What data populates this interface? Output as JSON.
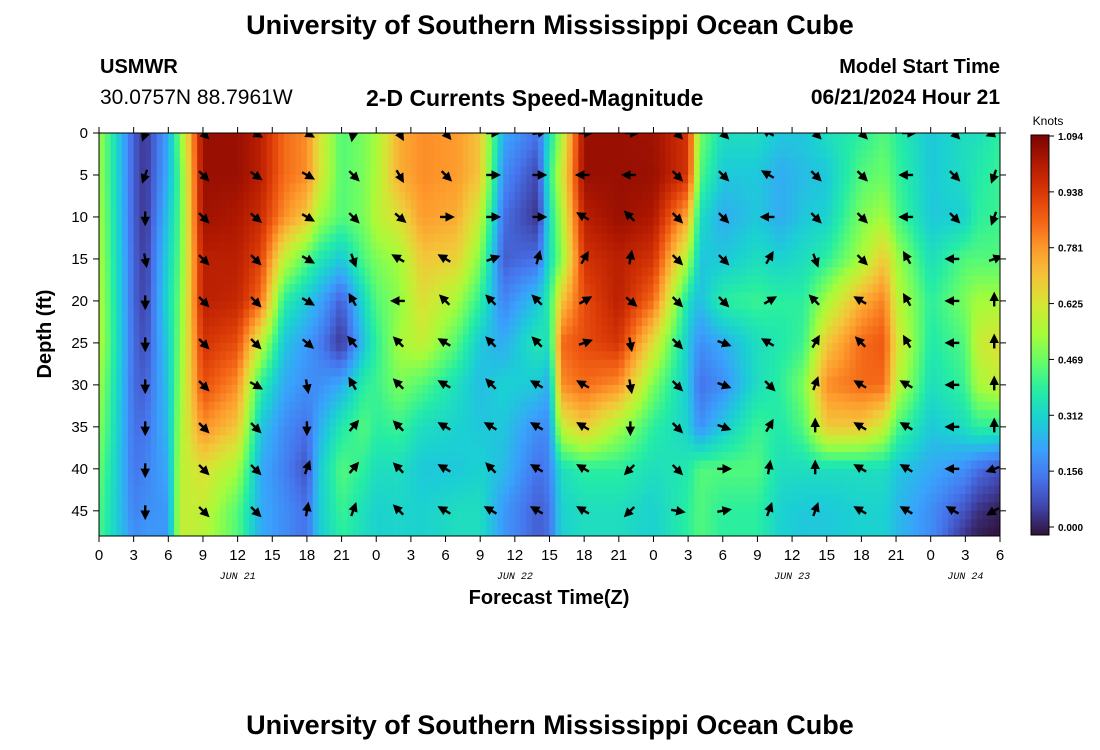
{
  "header": {
    "title": "University of Southern Mississippi Ocean Cube",
    "station_name": "USMWR",
    "station_coords": "30.0757N  88.7961W",
    "variable_title": "2-D Currents Speed-Magnitude",
    "model_start_label": "Model Start Time",
    "model_start_value": "06/21/2024 Hour 21"
  },
  "footer": {
    "title": "University of Southern Mississippi Ocean Cube"
  },
  "chart_data": {
    "type": "heatmap",
    "title": "2-D Currents Speed-Magnitude",
    "xlabel": "Forecast Time(Z)",
    "ylabel": "Depth (ft)",
    "x_tick_labels": [
      "0",
      "3",
      "6",
      "9",
      "12",
      "15",
      "18",
      "21",
      "0",
      "3",
      "6",
      "9",
      "12",
      "15",
      "18",
      "21",
      "0",
      "3",
      "6",
      "9",
      "12",
      "15",
      "18",
      "21",
      "0",
      "3",
      "6"
    ],
    "date_labels": [
      {
        "label": "JUN 21",
        "tick_index": 4
      },
      {
        "label": "JUN 22",
        "tick_index": 12
      },
      {
        "label": "JUN 23",
        "tick_index": 20
      },
      {
        "label": "JUN 24",
        "tick_index": 25
      }
    ],
    "hours_range": [
      0,
      78
    ],
    "depth_range": [
      0,
      48
    ],
    "y_ticks": [
      0,
      5,
      10,
      15,
      20,
      25,
      30,
      35,
      40,
      45
    ],
    "colorbar": {
      "unit_label": "Knots",
      "min": 0.0,
      "max": 1.094,
      "tick_labels": [
        "1.094",
        "0.938",
        "0.781",
        "0.625",
        "0.469",
        "0.312",
        "0.156",
        "0.000"
      ],
      "colors": [
        "#30123b",
        "#4145ab",
        "#4675ed",
        "#39a2fc",
        "#1bcfd4",
        "#24eca6",
        "#61fc6c",
        "#a4fc3b",
        "#d1e834",
        "#f3c63a",
        "#fe9b2d",
        "#f36315",
        "#d93806",
        "#b11901",
        "#7a0403"
      ]
    },
    "speed_anchor_hours": [
      0,
      3,
      4,
      6,
      7,
      9,
      12,
      14,
      16,
      18,
      19,
      21,
      23,
      24,
      26,
      28,
      31,
      33,
      35,
      38,
      39,
      40,
      42,
      45,
      48,
      51,
      52,
      54,
      57,
      59,
      61,
      63,
      66,
      68,
      69,
      72,
      75,
      76,
      78
    ],
    "speed_anchor_depths": [
      0,
      5,
      10,
      15,
      20,
      25,
      30,
      35,
      40,
      45,
      48
    ],
    "speed_knots": [
      [
        0.55,
        0.55,
        0.56,
        0.57,
        0.58,
        0.58,
        0.55,
        0.52,
        0.48,
        0.45,
        0.44
      ],
      [
        0.12,
        0.12,
        0.12,
        0.13,
        0.13,
        0.14,
        0.14,
        0.15,
        0.16,
        0.18,
        0.2
      ],
      [
        0.05,
        0.05,
        0.05,
        0.06,
        0.07,
        0.09,
        0.12,
        0.15,
        0.18,
        0.2,
        0.22
      ],
      [
        0.25,
        0.26,
        0.3,
        0.33,
        0.35,
        0.32,
        0.3,
        0.28,
        0.25,
        0.22,
        0.22
      ],
      [
        0.5,
        0.45,
        0.45,
        0.46,
        0.48,
        0.5,
        0.52,
        0.55,
        0.58,
        0.6,
        0.6
      ],
      [
        1.05,
        1.05,
        1.04,
        1.0,
        1.0,
        0.95,
        0.9,
        0.8,
        0.65,
        0.6,
        0.58
      ],
      [
        1.05,
        1.05,
        1.02,
        1.0,
        0.98,
        0.9,
        0.8,
        0.7,
        0.55,
        0.45,
        0.45
      ],
      [
        1.0,
        1.0,
        0.97,
        0.92,
        0.85,
        0.6,
        0.4,
        0.3,
        0.25,
        0.25,
        0.25
      ],
      [
        0.85,
        0.85,
        0.8,
        0.6,
        0.4,
        0.3,
        0.25,
        0.2,
        0.18,
        0.2,
        0.2
      ],
      [
        0.8,
        0.8,
        0.7,
        0.45,
        0.3,
        0.22,
        0.2,
        0.15,
        0.1,
        0.15,
        0.15
      ],
      [
        0.65,
        0.65,
        0.55,
        0.38,
        0.25,
        0.18,
        0.2,
        0.25,
        0.3,
        0.3,
        0.3
      ],
      [
        0.45,
        0.45,
        0.45,
        0.3,
        0.12,
        0.05,
        0.25,
        0.38,
        0.45,
        0.42,
        0.4
      ],
      [
        0.5,
        0.5,
        0.5,
        0.45,
        0.35,
        0.3,
        0.4,
        0.45,
        0.4,
        0.35,
        0.35
      ],
      [
        0.55,
        0.56,
        0.58,
        0.5,
        0.45,
        0.4,
        0.42,
        0.4,
        0.35,
        0.32,
        0.32
      ],
      [
        0.75,
        0.75,
        0.65,
        0.55,
        0.52,
        0.55,
        0.5,
        0.42,
        0.35,
        0.33,
        0.33
      ],
      [
        0.8,
        0.8,
        0.78,
        0.7,
        0.65,
        0.6,
        0.45,
        0.35,
        0.3,
        0.32,
        0.32
      ],
      [
        0.78,
        0.78,
        0.75,
        0.68,
        0.55,
        0.45,
        0.35,
        0.32,
        0.3,
        0.35,
        0.35
      ],
      [
        0.7,
        0.7,
        0.6,
        0.5,
        0.4,
        0.3,
        0.28,
        0.3,
        0.32,
        0.35,
        0.35
      ],
      [
        0.25,
        0.2,
        0.15,
        0.12,
        0.18,
        0.25,
        0.32,
        0.3,
        0.28,
        0.22,
        0.22
      ],
      [
        0.15,
        0.08,
        0.05,
        0.15,
        0.3,
        0.38,
        0.3,
        0.2,
        0.15,
        0.12,
        0.12
      ],
      [
        0.35,
        0.4,
        0.35,
        0.35,
        0.4,
        0.35,
        0.25,
        0.2,
        0.18,
        0.15,
        0.15
      ],
      [
        0.55,
        0.6,
        0.55,
        0.5,
        0.7,
        0.85,
        0.8,
        0.6,
        0.35,
        0.32,
        0.32
      ],
      [
        1.05,
        1.05,
        1.0,
        0.95,
        0.9,
        0.9,
        0.85,
        0.7,
        0.4,
        0.35,
        0.35
      ],
      [
        1.05,
        1.05,
        1.05,
        1.0,
        1.0,
        0.95,
        0.8,
        0.55,
        0.4,
        0.35,
        0.35
      ],
      [
        1.04,
        1.05,
        1.02,
        0.95,
        0.85,
        0.65,
        0.5,
        0.4,
        0.35,
        0.32,
        0.32
      ],
      [
        0.95,
        0.95,
        0.75,
        0.55,
        0.35,
        0.3,
        0.3,
        0.32,
        0.38,
        0.4,
        0.4
      ],
      [
        0.5,
        0.45,
        0.35,
        0.3,
        0.28,
        0.2,
        0.15,
        0.2,
        0.45,
        0.45,
        0.45
      ],
      [
        0.35,
        0.3,
        0.25,
        0.3,
        0.4,
        0.25,
        0.2,
        0.3,
        0.45,
        0.4,
        0.4
      ],
      [
        0.35,
        0.3,
        0.3,
        0.35,
        0.42,
        0.35,
        0.35,
        0.42,
        0.45,
        0.4,
        0.4
      ],
      [
        0.3,
        0.25,
        0.25,
        0.32,
        0.4,
        0.38,
        0.4,
        0.38,
        0.35,
        0.32,
        0.32
      ],
      [
        0.3,
        0.28,
        0.3,
        0.35,
        0.4,
        0.42,
        0.5,
        0.45,
        0.35,
        0.3,
        0.3
      ],
      [
        0.35,
        0.3,
        0.32,
        0.4,
        0.55,
        0.7,
        0.8,
        0.7,
        0.35,
        0.3,
        0.3
      ],
      [
        0.4,
        0.45,
        0.5,
        0.55,
        0.75,
        0.85,
        0.85,
        0.7,
        0.35,
        0.32,
        0.32
      ],
      [
        0.45,
        0.48,
        0.55,
        0.7,
        0.82,
        0.88,
        0.85,
        0.6,
        0.35,
        0.32,
        0.32
      ],
      [
        0.4,
        0.42,
        0.45,
        0.55,
        0.6,
        0.65,
        0.6,
        0.45,
        0.3,
        0.28,
        0.28
      ],
      [
        0.3,
        0.3,
        0.3,
        0.35,
        0.4,
        0.38,
        0.35,
        0.3,
        0.25,
        0.2,
        0.2
      ],
      [
        0.35,
        0.35,
        0.32,
        0.45,
        0.5,
        0.45,
        0.42,
        0.35,
        0.2,
        0.1,
        0.05
      ],
      [
        0.35,
        0.38,
        0.4,
        0.45,
        0.55,
        0.6,
        0.55,
        0.4,
        0.15,
        0.05,
        0.02
      ],
      [
        0.4,
        0.42,
        0.42,
        0.45,
        0.55,
        0.65,
        0.6,
        0.4,
        0.1,
        0.02,
        0.0
      ]
    ],
    "vector_hours": [
      4,
      9,
      13.5,
      18,
      22,
      26,
      30,
      34,
      38,
      42,
      46,
      50,
      54,
      58,
      62,
      66,
      70,
      74,
      77.5
    ],
    "vector_depths": [
      0,
      5,
      10,
      15,
      20,
      25,
      30,
      35,
      40,
      45
    ],
    "vector_dirs_deg": [
      [
        200,
        200,
        180,
        170,
        180,
        180,
        180,
        180,
        180,
        180
      ],
      [
        135,
        135,
        135,
        135,
        135,
        135,
        135,
        135,
        135,
        135
      ],
      [
        120,
        125,
        130,
        135,
        135,
        135,
        120,
        135,
        135,
        135
      ],
      [
        120,
        120,
        120,
        120,
        120,
        130,
        170,
        180,
        20,
        10
      ],
      [
        190,
        135,
        135,
        160,
        330,
        320,
        330,
        40,
        40,
        20
      ],
      [
        150,
        150,
        130,
        300,
        270,
        315,
        315,
        315,
        315,
        315
      ],
      [
        140,
        135,
        90,
        300,
        315,
        300,
        300,
        300,
        300,
        300
      ],
      [
        90,
        90,
        90,
        70,
        315,
        315,
        315,
        300,
        315,
        300
      ],
      [
        80,
        90,
        90,
        15,
        315,
        315,
        300,
        300,
        300,
        300
      ],
      [
        90,
        270,
        300,
        30,
        60,
        70,
        300,
        300,
        300,
        300
      ],
      [
        90,
        270,
        315,
        10,
        130,
        170,
        170,
        180,
        225,
        225
      ],
      [
        135,
        135,
        135,
        135,
        135,
        135,
        135,
        135,
        135,
        100
      ],
      [
        135,
        135,
        135,
        135,
        135,
        110,
        110,
        110,
        90,
        80
      ],
      [
        300,
        300,
        270,
        30,
        60,
        300,
        135,
        30,
        10,
        20
      ],
      [
        135,
        135,
        135,
        160,
        315,
        30,
        20,
        0,
        0,
        20
      ],
      [
        135,
        135,
        135,
        135,
        300,
        315,
        300,
        300,
        300,
        300
      ],
      [
        90,
        270,
        270,
        330,
        330,
        330,
        300,
        300,
        300,
        300
      ],
      [
        135,
        135,
        135,
        270,
        270,
        270,
        270,
        270,
        270,
        300
      ],
      [
        250,
        200,
        200,
        70,
        0,
        0,
        0,
        0,
        250,
        240
      ]
    ]
  }
}
